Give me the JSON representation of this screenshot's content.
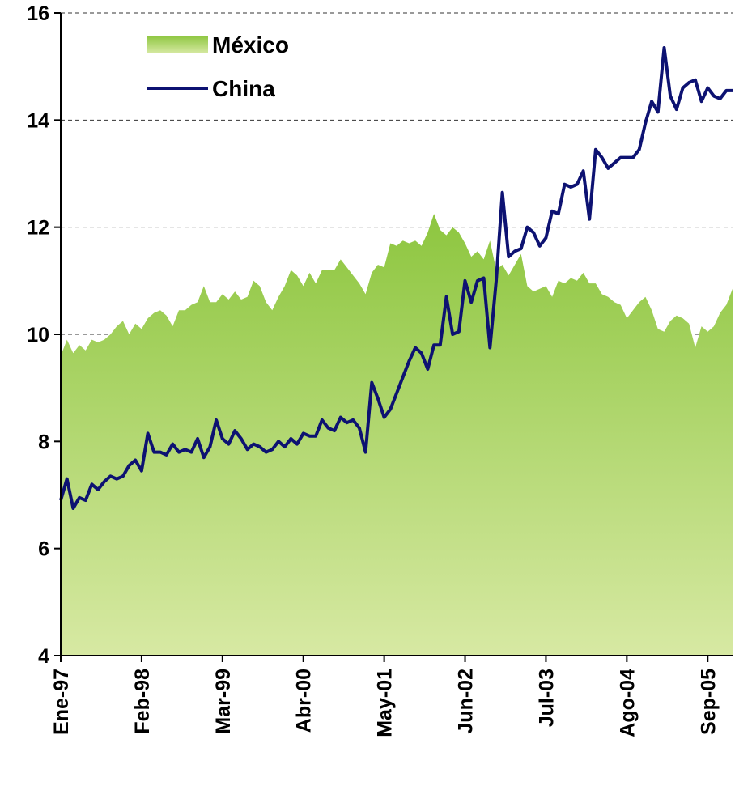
{
  "chart_data": {
    "type": "line",
    "categories": [
      "Ene-97",
      null,
      null,
      null,
      null,
      null,
      null,
      null,
      null,
      null,
      null,
      null,
      null,
      "Feb-98",
      null,
      null,
      null,
      null,
      null,
      null,
      null,
      null,
      null,
      null,
      null,
      null,
      "Mar-99",
      null,
      null,
      null,
      null,
      null,
      null,
      null,
      null,
      null,
      null,
      null,
      null,
      "Abr-00",
      null,
      null,
      null,
      null,
      null,
      null,
      null,
      null,
      null,
      null,
      null,
      null,
      "May-01",
      null,
      null,
      null,
      null,
      null,
      null,
      null,
      null,
      null,
      null,
      null,
      null,
      "Jun-02",
      null,
      null,
      null,
      null,
      null,
      null,
      null,
      null,
      null,
      null,
      null,
      null,
      "Jul-03",
      null,
      null,
      null,
      null,
      null,
      null,
      null,
      null,
      null,
      null,
      null,
      null,
      "Ago-04",
      null,
      null,
      null,
      null,
      null,
      null,
      null,
      null,
      null,
      null,
      null,
      null,
      "Sep-05",
      null,
      null,
      null,
      null
    ],
    "series": [
      {
        "name": "México",
        "type": "area",
        "color": "#8dc63f",
        "color2": "#d7e9a3",
        "values": [
          9.6,
          9.9,
          9.65,
          9.8,
          9.7,
          9.9,
          9.85,
          9.9,
          10.0,
          10.15,
          10.25,
          10.0,
          10.2,
          10.1,
          10.3,
          10.4,
          10.45,
          10.35,
          10.15,
          10.45,
          10.45,
          10.55,
          10.6,
          10.9,
          10.6,
          10.6,
          10.75,
          10.65,
          10.8,
          10.65,
          10.7,
          11.0,
          10.9,
          10.6,
          10.45,
          10.7,
          10.9,
          11.2,
          11.1,
          10.9,
          11.15,
          10.95,
          11.2,
          11.2,
          11.2,
          11.4,
          11.25,
          11.1,
          10.95,
          10.75,
          11.15,
          11.3,
          11.25,
          11.7,
          11.65,
          11.75,
          11.7,
          11.75,
          11.65,
          11.9,
          12.25,
          11.95,
          11.85,
          12.0,
          11.9,
          11.7,
          11.45,
          11.55,
          11.4,
          11.75,
          11.2,
          11.3,
          11.1,
          11.3,
          11.5,
          10.9,
          10.8,
          10.85,
          10.9,
          10.7,
          11.0,
          10.95,
          11.05,
          11.0,
          11.15,
          10.95,
          10.95,
          10.75,
          10.7,
          10.6,
          10.55,
          10.3,
          10.45,
          10.6,
          10.7,
          10.45,
          10.1,
          10.05,
          10.25,
          10.35,
          10.3,
          10.2,
          9.75,
          10.15,
          10.05,
          10.15,
          10.4,
          10.55,
          10.85
        ]
      },
      {
        "name": "China",
        "type": "line",
        "color": "#0d1272",
        "values": [
          6.9,
          7.3,
          6.75,
          6.95,
          6.9,
          7.2,
          7.1,
          7.25,
          7.35,
          7.3,
          7.35,
          7.55,
          7.65,
          7.45,
          8.15,
          7.8,
          7.8,
          7.75,
          7.95,
          7.8,
          7.85,
          7.8,
          8.05,
          7.7,
          7.9,
          8.4,
          8.05,
          7.95,
          8.2,
          8.05,
          7.85,
          7.95,
          7.9,
          7.8,
          7.85,
          8.0,
          7.9,
          8.05,
          7.95,
          8.15,
          8.1,
          8.1,
          8.4,
          8.25,
          8.2,
          8.45,
          8.35,
          8.4,
          8.25,
          7.8,
          9.1,
          8.8,
          8.45,
          8.6,
          8.9,
          9.2,
          9.5,
          9.75,
          9.65,
          9.35,
          9.8,
          9.8,
          10.7,
          10.0,
          10.05,
          11.0,
          10.6,
          11.0,
          11.05,
          9.75,
          11.0,
          12.65,
          11.45,
          11.55,
          11.6,
          12.0,
          11.9,
          11.65,
          11.8,
          12.3,
          12.25,
          12.8,
          12.75,
          12.8,
          13.05,
          12.15,
          13.45,
          13.3,
          13.1,
          13.2,
          13.3,
          13.3,
          13.3,
          13.45,
          13.95,
          14.35,
          14.15,
          15.35,
          14.45,
          14.2,
          14.6,
          14.7,
          14.75,
          14.35,
          14.6,
          14.45,
          14.4,
          14.55,
          14.55
        ]
      }
    ],
    "ylim": [
      4,
      16
    ],
    "yticks": [
      4,
      6,
      8,
      10,
      12,
      14,
      16
    ],
    "grid": true,
    "legend": "upper left"
  }
}
